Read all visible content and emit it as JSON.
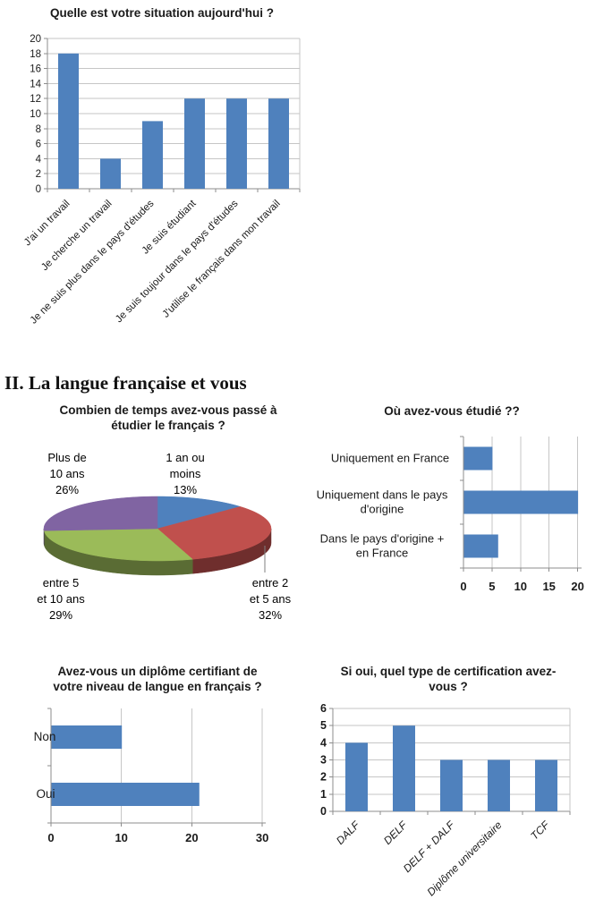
{
  "heading": "II. La langue française et vous",
  "colors": {
    "bar": "#4f81bd",
    "grid": "#c6c6c6",
    "axis": "#8c8c8c",
    "text": "#1a1a1a",
    "pie_blue": "#4f81bd",
    "pie_red": "#c0504d",
    "pie_green": "#9bbb59",
    "pie_purple": "#8064a2"
  },
  "chart_data": [
    {
      "id": "situation",
      "type": "bar",
      "title": "Quelle est votre situation aujourd'hui ?",
      "categories": [
        "J'ai un travail",
        "Je cherche un travail",
        "Je ne suis plus dans le pays d'études",
        "Je suis étudiant",
        "Je suis toujour dans le pays d'études",
        "J'utilise le français dans mon travail"
      ],
      "values": [
        18,
        4,
        9,
        12,
        12,
        12
      ],
      "xlabel": "",
      "ylabel": "",
      "ylim": [
        0,
        20
      ],
      "ytick_step": 2,
      "grid": true,
      "legend": "none",
      "bar_color": "#4f81bd"
    },
    {
      "id": "temps-etude",
      "type": "pie",
      "style": "3d",
      "title": "Combien de temps avez-vous passé à étudier le français ?",
      "title_lines": [
        "Combien de temps avez-vous passé à",
        "étudier le français ?"
      ],
      "slices": [
        {
          "label": "1 an ou moins",
          "pct": 13,
          "color": "#4f81bd",
          "label_lines": [
            "1 an ou",
            "moins",
            "13%"
          ]
        },
        {
          "label": "entre 2 et 5 ans",
          "pct": 32,
          "color": "#c0504d",
          "label_lines": [
            "entre 2",
            "et 5 ans",
            "32%"
          ]
        },
        {
          "label": "entre 5 et 10 ans",
          "pct": 29,
          "color": "#9bbb59",
          "label_lines": [
            "entre 5",
            "et 10 ans",
            "29%"
          ]
        },
        {
          "label": "Plus de 10 ans",
          "pct": 26,
          "color": "#8064a2",
          "label_lines": [
            "Plus de",
            "10 ans",
            "26%"
          ]
        }
      ],
      "legend": "none"
    },
    {
      "id": "ou-etudie",
      "type": "bar",
      "orientation": "horizontal",
      "title": "Où avez-vous étudié ??",
      "categories": [
        "Uniquement en France",
        "Uniquement dans le pays d'origine",
        "Dans le pays d'origine + en France"
      ],
      "categories_lines": [
        [
          "Uniquement en France"
        ],
        [
          "Uniquement dans le pays",
          "d'origine"
        ],
        [
          "Dans le pays d'origine +",
          "en France"
        ]
      ],
      "values": [
        5,
        20,
        6
      ],
      "xlim": [
        0,
        20
      ],
      "xtick_step": 5,
      "grid": true,
      "legend": "none",
      "bar_color": "#4f81bd"
    },
    {
      "id": "diplome",
      "type": "bar",
      "orientation": "horizontal",
      "title": "Avez-vous un diplôme certifiant de votre niveau de langue en français ?",
      "title_lines": [
        "Avez-vous un diplôme certifiant de",
        "votre niveau de langue en français ?"
      ],
      "categories": [
        "Non",
        "Oui"
      ],
      "categories_lines": [
        [
          "Non"
        ],
        [
          "Oui"
        ]
      ],
      "values": [
        10,
        21
      ],
      "xlim": [
        0,
        30
      ],
      "xtick_step": 10,
      "grid": true,
      "legend": "none",
      "bar_color": "#4f81bd"
    },
    {
      "id": "certification",
      "type": "bar",
      "title": "Si oui, quel type de certification avez-vous ?",
      "title_lines": [
        "Si oui, quel type de certification avez-",
        "vous ?"
      ],
      "categories": [
        "DALF",
        "DELF",
        "DELF + DALF",
        "Diplôme universitaire",
        "TCF"
      ],
      "values": [
        4,
        5,
        3,
        3,
        3
      ],
      "ylim": [
        0,
        6
      ],
      "ytick_step": 1,
      "grid": true,
      "legend": "none",
      "bar_color": "#4f81bd"
    }
  ]
}
